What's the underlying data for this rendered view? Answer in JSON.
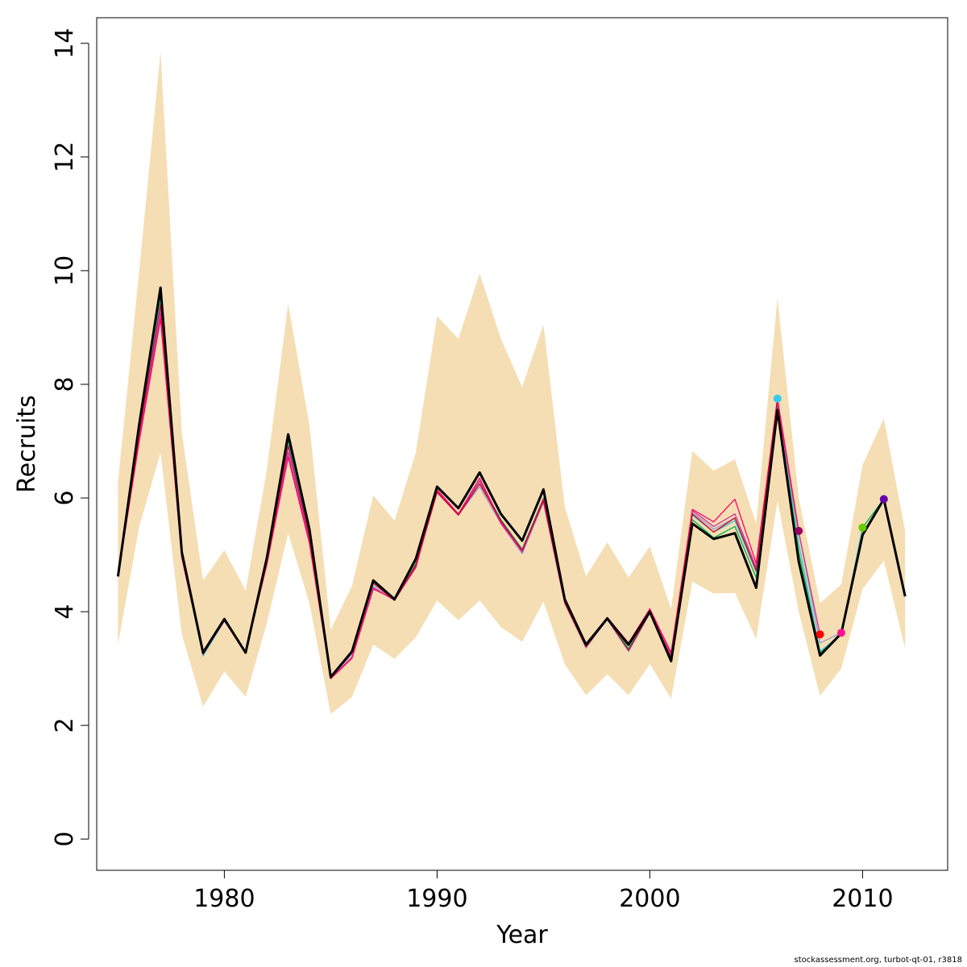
{
  "chart_data": {
    "type": "line",
    "xlabel": "Year",
    "ylabel": "Recruits",
    "xlim": [
      1974,
      2014
    ],
    "ylim": [
      -0.55,
      14.45
    ],
    "x_ticks": [
      1980,
      1990,
      2000,
      2010
    ],
    "y_ticks": [
      0,
      2,
      4,
      6,
      8,
      10,
      12,
      14
    ],
    "colors": {
      "band": "#f5deb3",
      "final": "#000000",
      "retro": [
        "#00b050",
        "#33cccc",
        "#9999cc",
        "#cc3399",
        "#ff0066",
        "#cc0033",
        "#e6c800"
      ],
      "markers": [
        "#33ccee",
        "#990066",
        "#ff0000",
        "#ff1493",
        "#66cc00",
        "#6600aa"
      ]
    },
    "band": {
      "x": [
        1975,
        1976,
        1977,
        1978,
        1979,
        1980,
        1981,
        1982,
        1983,
        1984,
        1985,
        1986,
        1987,
        1988,
        1989,
        1990,
        1991,
        1992,
        1993,
        1994,
        1995,
        1996,
        1997,
        1998,
        1999,
        2000,
        2001,
        2002,
        2003,
        2004,
        2005,
        2006,
        2007,
        2008,
        2009,
        2010,
        2011,
        2012
      ],
      "upper": [
        6.28,
        10.0,
        13.85,
        7.15,
        4.55,
        5.08,
        4.37,
        6.5,
        9.42,
        7.28,
        3.68,
        4.45,
        6.05,
        5.6,
        6.8,
        9.2,
        8.8,
        9.95,
        8.8,
        7.95,
        9.05,
        5.85,
        4.62,
        5.22,
        4.6,
        5.15,
        4.05,
        6.83,
        6.48,
        6.68,
        5.55,
        9.52,
        6.0,
        4.15,
        4.48,
        6.58,
        7.4,
        5.42
      ],
      "lower": [
        3.42,
        5.5,
        6.8,
        3.6,
        2.33,
        2.95,
        2.5,
        3.8,
        5.38,
        4.15,
        2.2,
        2.5,
        3.42,
        3.17,
        3.55,
        4.2,
        3.85,
        4.2,
        3.73,
        3.47,
        4.18,
        3.08,
        2.53,
        2.9,
        2.53,
        3.08,
        2.47,
        4.53,
        4.32,
        4.33,
        3.52,
        5.95,
        4.0,
        2.52,
        3.0,
        4.4,
        4.9,
        3.35
      ]
    },
    "series": [
      {
        "name": "",
        "role": "final",
        "x": [
          1975,
          1976,
          1977,
          1978,
          1979,
          1980,
          1981,
          1982,
          1983,
          1984,
          1985,
          1986,
          1987,
          1988,
          1989,
          1990,
          1991,
          1992,
          1993,
          1994,
          1995,
          1996,
          1997,
          1998,
          1999,
          2000,
          2001,
          2002,
          2003,
          2004,
          2005,
          2006,
          2007,
          2008,
          2009,
          2010,
          2011,
          2012
        ],
        "y": [
          4.62,
          7.3,
          9.7,
          5.05,
          3.28,
          3.87,
          3.28,
          4.95,
          7.12,
          5.45,
          2.85,
          3.3,
          4.55,
          4.22,
          4.93,
          6.2,
          5.82,
          6.45,
          5.72,
          5.25,
          6.15,
          4.22,
          3.42,
          3.88,
          3.42,
          4.0,
          3.13,
          5.55,
          5.28,
          5.38,
          4.42,
          7.55,
          4.88,
          3.23,
          3.62,
          5.35,
          5.98,
          4.27
        ]
      },
      {
        "name": "",
        "x": [
          1975,
          1976,
          1977,
          1978,
          1979,
          1980,
          1981,
          1982,
          1983,
          1984,
          1985,
          1986,
          1987,
          1988,
          1989,
          1990,
          1991,
          1992,
          1993,
          1994,
          1995,
          1996,
          1997,
          1998,
          1999,
          2000,
          2001,
          2002,
          2003,
          2004,
          2005,
          2006,
          2007,
          2008,
          2009,
          2010,
          2011
        ],
        "y": [
          4.62,
          7.25,
          9.55,
          5.0,
          3.24,
          3.85,
          3.3,
          4.92,
          7.0,
          5.38,
          2.85,
          3.32,
          4.52,
          4.2,
          4.85,
          6.12,
          5.72,
          6.3,
          5.62,
          5.1,
          6.0,
          4.18,
          3.4,
          3.88,
          3.35,
          3.98,
          3.2,
          5.62,
          5.3,
          5.5,
          4.6,
          7.62,
          5.05,
          3.28,
          3.6,
          5.48,
          5.98
        ]
      },
      {
        "name": "",
        "x": [
          1975,
          1976,
          1977,
          1978,
          1979,
          1980,
          1981,
          1982,
          1983,
          1984,
          1985,
          1986,
          1987,
          1988,
          1989,
          1990,
          1991,
          1992,
          1993,
          1994,
          1995,
          1996,
          1997,
          1998,
          1999,
          2000,
          2001,
          2002,
          2003,
          2004,
          2005,
          2006,
          2007,
          2008,
          2009,
          2010
        ],
        "y": [
          4.62,
          7.18,
          9.45,
          4.98,
          3.22,
          3.84,
          3.3,
          4.9,
          6.95,
          5.35,
          2.84,
          3.3,
          4.5,
          4.2,
          4.82,
          6.1,
          5.7,
          6.25,
          5.6,
          5.05,
          5.95,
          4.16,
          3.37,
          3.86,
          3.3,
          3.97,
          3.22,
          5.7,
          5.4,
          5.6,
          4.7,
          7.75,
          5.2,
          3.3,
          3.6,
          5.48
        ]
      },
      {
        "name": "",
        "x": [
          1975,
          1976,
          1977,
          1978,
          1979,
          1980,
          1981,
          1982,
          1983,
          1984,
          1985,
          1986,
          1987,
          1988,
          1989,
          1990,
          1991,
          1992,
          1993,
          1994,
          1995,
          1996,
          1997,
          1998,
          1999,
          2000,
          2001,
          2002,
          2003,
          2004,
          2005,
          2006,
          2007,
          2008,
          2009
        ],
        "y": [
          4.62,
          7.12,
          9.35,
          4.97,
          3.25,
          3.83,
          3.3,
          4.88,
          6.9,
          5.3,
          2.84,
          3.25,
          4.45,
          4.2,
          4.8,
          6.1,
          5.7,
          6.2,
          5.55,
          5.02,
          5.92,
          4.15,
          3.36,
          3.87,
          3.3,
          3.97,
          3.22,
          5.75,
          5.45,
          5.65,
          4.75,
          7.7,
          5.4,
          3.45,
          3.63
        ]
      },
      {
        "name": "",
        "x": [
          1975,
          1976,
          1977,
          1978,
          1979,
          1980,
          1981,
          1982,
          1983,
          1984,
          1985,
          1986,
          1987,
          1988,
          1989,
          1990,
          1991,
          1992,
          1993,
          1994,
          1995,
          1996,
          1997,
          1998,
          1999,
          2000,
          2001,
          2002,
          2003,
          2004,
          2005,
          2006,
          2007,
          2008
        ],
        "y": [
          4.62,
          7.05,
          9.25,
          4.95,
          3.26,
          3.84,
          3.28,
          4.85,
          6.8,
          5.25,
          2.83,
          3.2,
          4.42,
          4.2,
          4.78,
          6.12,
          5.7,
          6.3,
          5.55,
          5.05,
          5.95,
          4.15,
          3.38,
          3.88,
          3.4,
          4.03,
          3.25,
          5.78,
          5.5,
          5.72,
          4.78,
          7.68,
          5.4,
          3.6
        ]
      },
      {
        "name": "",
        "x": [
          1975,
          1976,
          1977,
          1978,
          1979,
          1980,
          1981,
          1982,
          1983,
          1984,
          1985,
          1986,
          1987,
          1988,
          1989,
          1990,
          1991,
          1992,
          1993,
          1994,
          1995,
          1996,
          1997,
          1998,
          1999,
          2000,
          2001,
          2002,
          2003,
          2004,
          2005,
          2006,
          2007
        ],
        "y": [
          4.62,
          7.0,
          9.15,
          4.95,
          3.28,
          3.85,
          3.28,
          4.83,
          6.72,
          5.2,
          2.82,
          3.18,
          4.4,
          4.22,
          4.78,
          6.15,
          5.72,
          6.35,
          5.58,
          5.08,
          5.98,
          4.16,
          3.4,
          3.9,
          3.45,
          4.05,
          3.28,
          5.8,
          5.58,
          5.98,
          4.85,
          7.75,
          5.42
        ]
      },
      {
        "name": "",
        "x": [
          1975,
          1976,
          1977,
          1978,
          1979,
          1980,
          1981,
          1982,
          1983,
          1984,
          1985,
          1986,
          1987,
          1988,
          1989,
          1990,
          1991,
          1992,
          1993,
          1994,
          1995,
          1996,
          1997,
          1998,
          1999,
          2000,
          2001,
          2002,
          2003,
          2004,
          2005,
          2006
        ],
        "y": [
          4.62,
          7.15,
          9.4,
          4.98,
          3.25,
          3.85,
          3.3,
          4.9,
          6.92,
          5.32,
          2.84,
          3.28,
          4.5,
          4.2,
          4.82,
          6.1,
          5.7,
          6.25,
          5.6,
          5.08,
          5.95,
          4.16,
          3.38,
          3.87,
          3.32,
          3.98,
          3.2,
          5.72,
          5.4,
          5.65,
          4.72,
          7.75
        ]
      }
    ],
    "terminal_points": [
      {
        "x": 2006,
        "y": 7.75
      },
      {
        "x": 2007,
        "y": 5.42
      },
      {
        "x": 2008,
        "y": 3.6
      },
      {
        "x": 2009,
        "y": 3.63
      },
      {
        "x": 2010,
        "y": 5.48
      },
      {
        "x": 2011,
        "y": 5.98
      }
    ]
  },
  "footer": {
    "note": "stockassessment.org, turbot-qt-01, r3818"
  }
}
